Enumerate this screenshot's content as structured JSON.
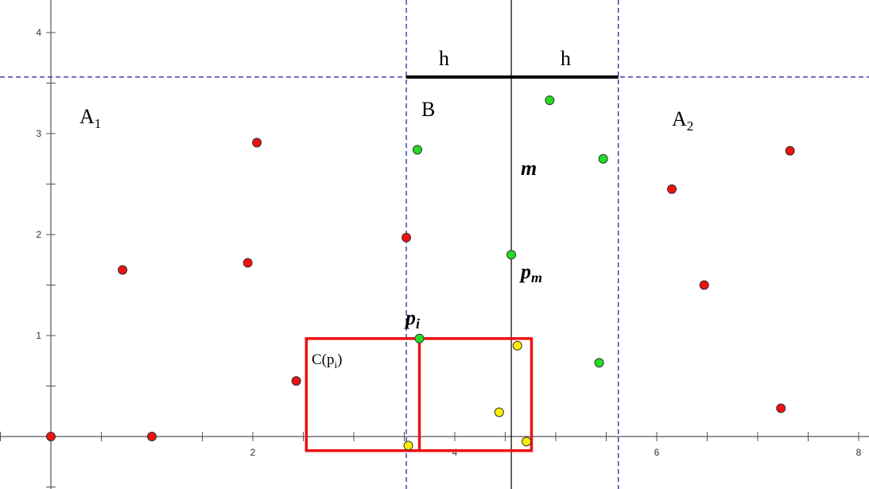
{
  "diagram": {
    "x_axis": {
      "ticks": [
        2,
        4,
        6,
        8
      ],
      "range": [
        -0.5,
        8.1
      ]
    },
    "y_axis": {
      "ticks": [
        1,
        2,
        3,
        4
      ],
      "range": [
        -0.5,
        4.4
      ]
    },
    "labels": {
      "h_left": "h",
      "h_right": "h",
      "region_a1": "A",
      "region_a1_sub": "1",
      "region_b": "B",
      "region_a2": "A",
      "region_a2_sub": "2",
      "median_line": "m",
      "pm": "p",
      "pm_sub": "m",
      "pi": "p",
      "pi_sub": "i",
      "cell": "C(p",
      "cell_sub": "i",
      "cell_close": ")"
    },
    "median_x": 4.56,
    "strip_left_x": 3.52,
    "strip_right_x": 5.62,
    "h_line_y": 3.56,
    "cell_rect": {
      "x_min": 2.53,
      "x_max": 4.76,
      "y_min": -0.14,
      "y_max": 0.97,
      "divider_x": 3.65
    },
    "colors": {
      "red": "#ee1111",
      "green": "#22dd22",
      "yellow": "#ffee00",
      "dash": "#1a1a99",
      "rect": "#ee1111"
    },
    "points": {
      "red": [
        [
          0,
          0
        ],
        [
          1,
          0
        ],
        [
          0.71,
          1.65
        ],
        [
          1.95,
          1.72
        ],
        [
          2.04,
          2.91
        ],
        [
          2.43,
          0.55
        ],
        [
          3.52,
          1.97
        ],
        [
          6.15,
          2.45
        ],
        [
          6.47,
          1.5
        ],
        [
          7.32,
          2.83
        ],
        [
          7.23,
          0.28
        ]
      ],
      "green": [
        [
          3.63,
          2.84
        ],
        [
          4.94,
          3.33
        ],
        [
          5.47,
          2.75
        ],
        [
          4.56,
          1.8
        ],
        [
          5.43,
          0.73
        ],
        [
          3.65,
          0.97
        ]
      ],
      "yellow": [
        [
          4.62,
          0.9
        ],
        [
          4.44,
          0.24
        ],
        [
          4.71,
          -0.05
        ],
        [
          3.54,
          -0.09
        ]
      ]
    }
  }
}
